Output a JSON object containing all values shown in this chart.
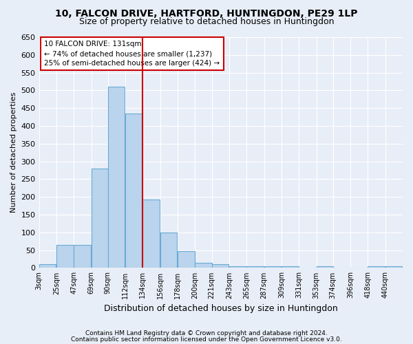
{
  "title": "10, FALCON DRIVE, HARTFORD, HUNTINGDON, PE29 1LP",
  "subtitle": "Size of property relative to detached houses in Huntingdon",
  "xlabel": "Distribution of detached houses by size in Huntingdon",
  "ylabel": "Number of detached properties",
  "footer_line1": "Contains HM Land Registry data © Crown copyright and database right 2024.",
  "footer_line2": "Contains public sector information licensed under the Open Government Licence v3.0.",
  "annotation_title": "10 FALCON DRIVE: 131sqm",
  "annotation_line2": "← 74% of detached houses are smaller (1,237)",
  "annotation_line3": "25% of semi-detached houses are larger (424) →",
  "bin_labels": [
    "3sqm",
    "25sqm",
    "47sqm",
    "69sqm",
    "90sqm",
    "112sqm",
    "134sqm",
    "156sqm",
    "178sqm",
    "200sqm",
    "221sqm",
    "243sqm",
    "265sqm",
    "287sqm",
    "309sqm",
    "331sqm",
    "353sqm",
    "374sqm",
    "396sqm",
    "418sqm",
    "440sqm"
  ],
  "bin_edges": [
    3,
    25,
    47,
    69,
    90,
    112,
    134,
    156,
    178,
    200,
    221,
    243,
    265,
    287,
    309,
    331,
    353,
    374,
    396,
    418,
    440
  ],
  "bar_heights": [
    10,
    65,
    65,
    280,
    510,
    435,
    193,
    100,
    47,
    15,
    10,
    5,
    5,
    5,
    5,
    0,
    5,
    0,
    0,
    5,
    5
  ],
  "bar_color": "#bad4ed",
  "bar_edge_color": "#6aaad4",
  "vline_x": 134,
  "vline_color": "#cc0000",
  "bg_color": "#e8eef7",
  "grid_color": "#ffffff",
  "ylim": [
    0,
    650
  ],
  "yticks": [
    0,
    50,
    100,
    150,
    200,
    250,
    300,
    350,
    400,
    450,
    500,
    550,
    600,
    650
  ],
  "bin_width": 22
}
